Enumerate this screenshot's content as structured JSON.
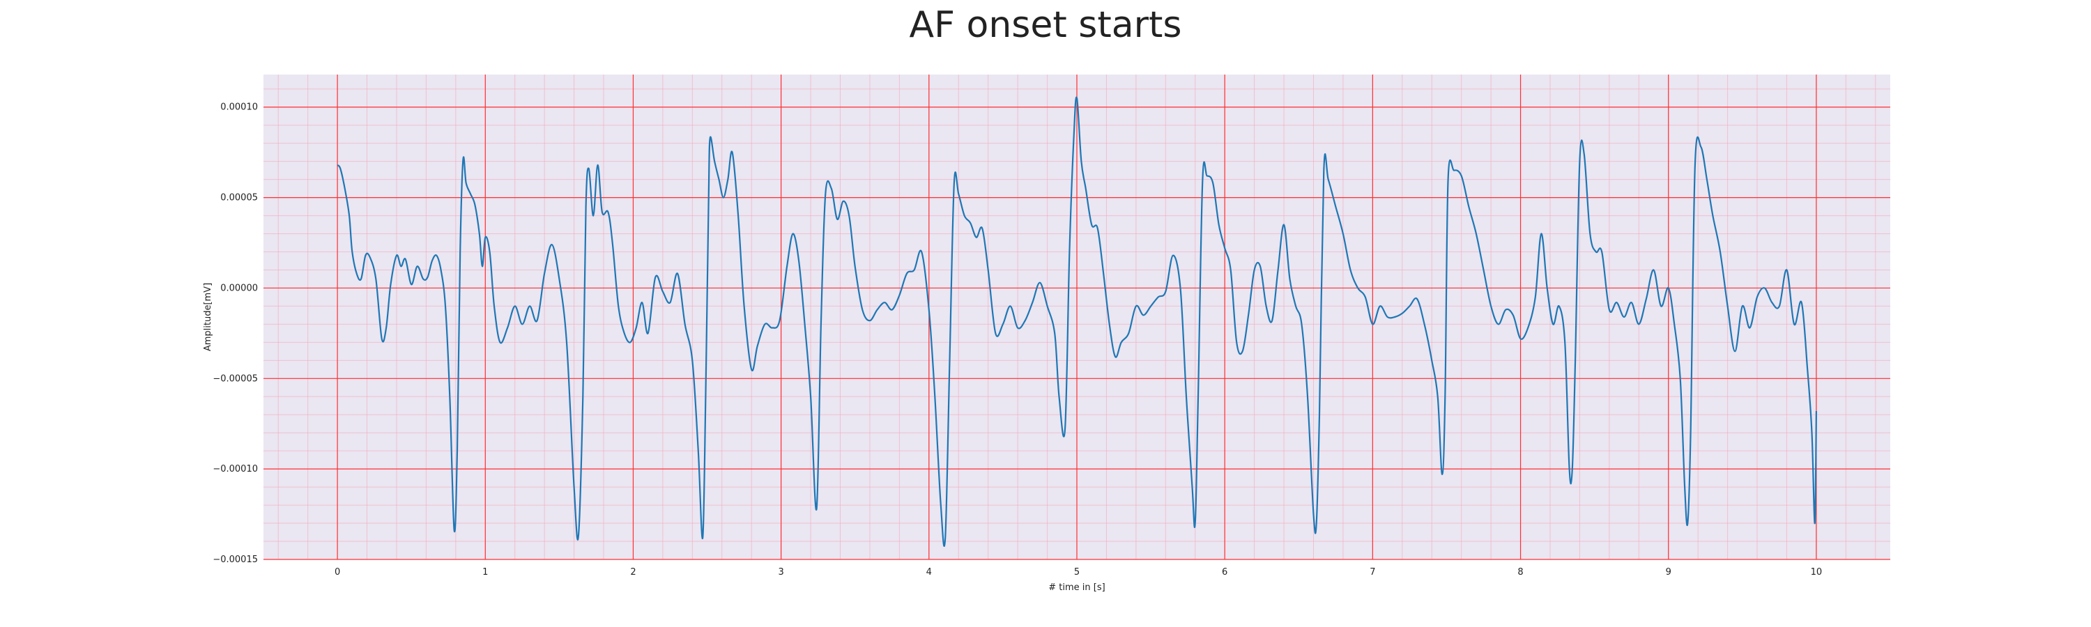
{
  "chart_data": {
    "type": "line",
    "title": "AF onset starts",
    "xlabel": "# time in [s]",
    "ylabel": "Amplitude[mV]",
    "xlim": [
      -0.5,
      10.5
    ],
    "ylim": [
      -0.00015,
      0.000118
    ],
    "xticks": [
      0,
      1,
      2,
      3,
      4,
      5,
      6,
      7,
      8,
      9,
      10
    ],
    "xtick_labels": [
      "0",
      "1",
      "2",
      "3",
      "4",
      "5",
      "6",
      "7",
      "8",
      "9",
      "10"
    ],
    "yticks": [
      -0.00015,
      -0.0001,
      -5e-05,
      0,
      5e-05,
      0.0001
    ],
    "ytick_labels": [
      "−0.00015",
      "−0.00010",
      "−0.00005",
      "0.00000",
      "0.00005",
      "0.00010"
    ],
    "grid": {
      "major": true,
      "minor": true,
      "major_color": "#ff3030",
      "minor_color": "#f4a8b8"
    },
    "background_color": "#eae6f2",
    "series": [
      {
        "color": "#1f77b4",
        "points": [
          [
            0.0,
            6.8e-05
          ],
          [
            0.02,
            6.6e-05
          ],
          [
            0.05,
            5.5e-05
          ],
          [
            0.08,
            4e-05
          ],
          [
            0.1,
            2e-05
          ],
          [
            0.13,
            8e-06
          ],
          [
            0.16,
            5e-06
          ],
          [
            0.19,
            1.8e-05
          ],
          [
            0.22,
            1.7e-05
          ],
          [
            0.26,
            5e-06
          ],
          [
            0.3,
            -2.8e-05
          ],
          [
            0.33,
            -2.2e-05
          ],
          [
            0.36,
            2e-06
          ],
          [
            0.4,
            1.8e-05
          ],
          [
            0.43,
            1.2e-05
          ],
          [
            0.46,
            1.6e-05
          ],
          [
            0.5,
            2e-06
          ],
          [
            0.54,
            1.2e-05
          ],
          [
            0.58,
            5e-06
          ],
          [
            0.61,
            6e-06
          ],
          [
            0.64,
            1.5e-05
          ],
          [
            0.67,
            1.8e-05
          ],
          [
            0.7,
            1e-05
          ],
          [
            0.73,
            -1e-05
          ],
          [
            0.76,
            -6e-05
          ],
          [
            0.79,
            -0.000134
          ],
          [
            0.81,
            -9e-05
          ],
          [
            0.83,
            2e-05
          ],
          [
            0.85,
            7.1e-05
          ],
          [
            0.87,
            5.8e-05
          ],
          [
            0.9,
            5.2e-05
          ],
          [
            0.93,
            4.6e-05
          ],
          [
            0.96,
            3e-05
          ],
          [
            0.98,
            1.2e-05
          ],
          [
            1.0,
            2.8e-05
          ],
          [
            1.03,
            2e-05
          ],
          [
            1.06,
            -1e-05
          ],
          [
            1.1,
            -3e-05
          ],
          [
            1.15,
            -2.2e-05
          ],
          [
            1.2,
            -1e-05
          ],
          [
            1.25,
            -2e-05
          ],
          [
            1.3,
            -1e-05
          ],
          [
            1.35,
            -1.8e-05
          ],
          [
            1.4,
            8e-06
          ],
          [
            1.45,
            2.4e-05
          ],
          [
            1.5,
            5e-06
          ],
          [
            1.55,
            -3e-05
          ],
          [
            1.6,
            -0.00011
          ],
          [
            1.63,
            -0.000137
          ],
          [
            1.66,
            -6e-05
          ],
          [
            1.68,
            4.5e-05
          ],
          [
            1.7,
            6.6e-05
          ],
          [
            1.73,
            4e-05
          ],
          [
            1.76,
            6.8e-05
          ],
          [
            1.79,
            4.2e-05
          ],
          [
            1.83,
            4.2e-05
          ],
          [
            1.86,
            2.5e-05
          ],
          [
            1.9,
            -1e-05
          ],
          [
            1.94,
            -2.5e-05
          ],
          [
            1.98,
            -3e-05
          ],
          [
            2.02,
            -2.2e-05
          ],
          [
            2.06,
            -8e-06
          ],
          [
            2.1,
            -2.5e-05
          ],
          [
            2.15,
            6e-06
          ],
          [
            2.2,
            -2e-06
          ],
          [
            2.25,
            -8e-06
          ],
          [
            2.3,
            8e-06
          ],
          [
            2.35,
            -2e-05
          ],
          [
            2.4,
            -4e-05
          ],
          [
            2.44,
            -9e-05
          ],
          [
            2.47,
            -0.000138
          ],
          [
            2.49,
            -6e-05
          ],
          [
            2.51,
            5e-05
          ],
          [
            2.52,
            8.3e-05
          ],
          [
            2.55,
            7e-05
          ],
          [
            2.58,
            6e-05
          ],
          [
            2.61,
            5e-05
          ],
          [
            2.64,
            6e-05
          ],
          [
            2.67,
            7.5e-05
          ],
          [
            2.71,
            4e-05
          ],
          [
            2.75,
            -1e-05
          ],
          [
            2.8,
            -4.5e-05
          ],
          [
            2.84,
            -3.2e-05
          ],
          [
            2.89,
            -2e-05
          ],
          [
            2.94,
            -2.2e-05
          ],
          [
            2.99,
            -1.8e-05
          ],
          [
            3.04,
            1.2e-05
          ],
          [
            3.08,
            3e-05
          ],
          [
            3.12,
            1.5e-05
          ],
          [
            3.16,
            -2e-05
          ],
          [
            3.2,
            -6e-05
          ],
          [
            3.24,
            -0.000122
          ],
          [
            3.27,
            -2e-05
          ],
          [
            3.3,
            5.2e-05
          ],
          [
            3.34,
            5.5e-05
          ],
          [
            3.38,
            3.8e-05
          ],
          [
            3.42,
            4.8e-05
          ],
          [
            3.46,
            4e-05
          ],
          [
            3.5,
            1.2e-05
          ],
          [
            3.55,
            -1.2e-05
          ],
          [
            3.6,
            -1.8e-05
          ],
          [
            3.65,
            -1.2e-05
          ],
          [
            3.7,
            -8e-06
          ],
          [
            3.75,
            -1.2e-05
          ],
          [
            3.8,
            -4e-06
          ],
          [
            3.85,
            8e-06
          ],
          [
            3.9,
            1e-05
          ],
          [
            3.95,
            2e-05
          ],
          [
            4.0,
            -1.2e-05
          ],
          [
            4.04,
            -6e-05
          ],
          [
            4.08,
            -0.00012
          ],
          [
            4.11,
            -0.000138
          ],
          [
            4.14,
            -4e-05
          ],
          [
            4.17,
            5.8e-05
          ],
          [
            4.2,
            5.2e-05
          ],
          [
            4.24,
            4e-05
          ],
          [
            4.28,
            3.6e-05
          ],
          [
            4.32,
            2.8e-05
          ],
          [
            4.36,
            3.3e-05
          ],
          [
            4.4,
            1e-05
          ],
          [
            4.45,
            -2.5e-05
          ],
          [
            4.5,
            -2e-05
          ],
          [
            4.55,
            -1e-05
          ],
          [
            4.6,
            -2.2e-05
          ],
          [
            4.65,
            -1.8e-05
          ],
          [
            4.7,
            -8e-06
          ],
          [
            4.75,
            3e-06
          ],
          [
            4.8,
            -1e-05
          ],
          [
            4.85,
            -2.5e-05
          ],
          [
            4.88,
            -6e-05
          ],
          [
            4.92,
            -7.8e-05
          ],
          [
            4.95,
            2e-05
          ],
          [
            4.98,
            8.5e-05
          ],
          [
            5.0,
            0.000105
          ],
          [
            5.03,
            7e-05
          ],
          [
            5.06,
            5.5e-05
          ],
          [
            5.1,
            3.5e-05
          ],
          [
            5.14,
            3.3e-05
          ],
          [
            5.18,
            8e-06
          ],
          [
            5.22,
            -2e-05
          ],
          [
            5.26,
            -3.8e-05
          ],
          [
            5.3,
            -3e-05
          ],
          [
            5.35,
            -2.5e-05
          ],
          [
            5.4,
            -1e-05
          ],
          [
            5.45,
            -1.5e-05
          ],
          [
            5.5,
            -1e-05
          ],
          [
            5.55,
            -5e-06
          ],
          [
            5.6,
            -2e-06
          ],
          [
            5.65,
            1.8e-05
          ],
          [
            5.7,
            0.0
          ],
          [
            5.74,
            -6e-05
          ],
          [
            5.78,
            -0.00011
          ],
          [
            5.8,
            -0.00013
          ],
          [
            5.82,
            -6e-05
          ],
          [
            5.85,
            6e-05
          ],
          [
            5.88,
            6.2e-05
          ],
          [
            5.92,
            5.8e-05
          ],
          [
            5.96,
            3.5e-05
          ],
          [
            6.0,
            2.2e-05
          ],
          [
            6.04,
            1e-05
          ],
          [
            6.08,
            -3e-05
          ],
          [
            6.12,
            -3.5e-05
          ],
          [
            6.16,
            -1.5e-05
          ],
          [
            6.2,
            1e-05
          ],
          [
            6.24,
            1.2e-05
          ],
          [
            6.28,
            -1e-05
          ],
          [
            6.32,
            -1.8e-05
          ],
          [
            6.36,
            1e-05
          ],
          [
            6.4,
            3.5e-05
          ],
          [
            6.44,
            5e-06
          ],
          [
            6.48,
            -1e-05
          ],
          [
            6.52,
            -2e-05
          ],
          [
            6.56,
            -6e-05
          ],
          [
            6.6,
            -0.000125
          ],
          [
            6.62,
            -0.00013
          ],
          [
            6.64,
            -7e-05
          ],
          [
            6.67,
            6.5e-05
          ],
          [
            6.7,
            6e-05
          ],
          [
            6.75,
            4.5e-05
          ],
          [
            6.8,
            3e-05
          ],
          [
            6.85,
            1e-05
          ],
          [
            6.9,
            0.0
          ],
          [
            6.95,
            -5e-06
          ],
          [
            7.0,
            -2e-05
          ],
          [
            7.05,
            -1e-05
          ],
          [
            7.1,
            -1.6e-05
          ],
          [
            7.15,
            -1.6e-05
          ],
          [
            7.2,
            -1.4e-05
          ],
          [
            7.25,
            -1e-05
          ],
          [
            7.3,
            -6e-06
          ],
          [
            7.35,
            -2e-05
          ],
          [
            7.4,
            -4e-05
          ],
          [
            7.44,
            -6e-05
          ],
          [
            7.47,
            -0.000103
          ],
          [
            7.49,
            -6e-05
          ],
          [
            7.51,
            6e-05
          ],
          [
            7.55,
            6.5e-05
          ],
          [
            7.6,
            6.2e-05
          ],
          [
            7.65,
            4.5e-05
          ],
          [
            7.7,
            3e-05
          ],
          [
            7.75,
            1e-05
          ],
          [
            7.8,
            -1e-05
          ],
          [
            7.85,
            -2e-05
          ],
          [
            7.9,
            -1.2e-05
          ],
          [
            7.95,
            -1.5e-05
          ],
          [
            8.0,
            -2.8e-05
          ],
          [
            8.05,
            -2.2e-05
          ],
          [
            8.1,
            -5e-06
          ],
          [
            8.14,
            3e-05
          ],
          [
            8.18,
            0.0
          ],
          [
            8.22,
            -2e-05
          ],
          [
            8.26,
            -1e-05
          ],
          [
            8.3,
            -3e-05
          ],
          [
            8.33,
            -0.0001
          ],
          [
            8.35,
            -0.0001
          ],
          [
            8.37,
            -4e-05
          ],
          [
            8.4,
            7e-05
          ],
          [
            8.43,
            7.4e-05
          ],
          [
            8.47,
            3e-05
          ],
          [
            8.51,
            2e-05
          ],
          [
            8.55,
            2e-05
          ],
          [
            8.6,
            -1.2e-05
          ],
          [
            8.65,
            -8e-06
          ],
          [
            8.7,
            -1.6e-05
          ],
          [
            8.75,
            -8e-06
          ],
          [
            8.8,
            -2e-05
          ],
          [
            8.85,
            -6e-06
          ],
          [
            8.9,
            1e-05
          ],
          [
            8.95,
            -1e-05
          ],
          [
            9.0,
            0.0
          ],
          [
            9.04,
            -2e-05
          ],
          [
            9.08,
            -5e-05
          ],
          [
            9.11,
            -0.00011
          ],
          [
            9.13,
            -0.00013
          ],
          [
            9.15,
            -8e-05
          ],
          [
            9.18,
            6.8e-05
          ],
          [
            9.22,
            7.8e-05
          ],
          [
            9.26,
            6e-05
          ],
          [
            9.3,
            4e-05
          ],
          [
            9.35,
            2e-05
          ],
          [
            9.4,
            -1e-05
          ],
          [
            9.45,
            -3.5e-05
          ],
          [
            9.5,
            -1e-05
          ],
          [
            9.55,
            -2.2e-05
          ],
          [
            9.6,
            -5e-06
          ],
          [
            9.65,
            0.0
          ],
          [
            9.7,
            -8e-06
          ],
          [
            9.75,
            -1e-05
          ],
          [
            9.8,
            1e-05
          ],
          [
            9.85,
            -2e-05
          ],
          [
            9.9,
            -8e-06
          ],
          [
            9.94,
            -4.5e-05
          ],
          [
            9.97,
            -8e-05
          ],
          [
            9.99,
            -0.00013
          ],
          [
            10.0,
            -6.8e-05
          ]
        ]
      }
    ]
  }
}
